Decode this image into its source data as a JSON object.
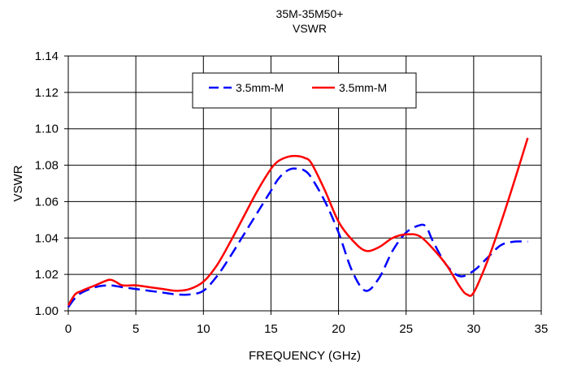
{
  "chart_data": {
    "type": "line",
    "title": "35M-35M50+",
    "subtitle": "VSWR",
    "xlabel": "FREQUENCY (GHz)",
    "ylabel": "VSWR",
    "xlim": [
      0,
      35
    ],
    "ylim": [
      1.0,
      1.14
    ],
    "xticks": [
      "0",
      "5",
      "10",
      "15",
      "20",
      "25",
      "30",
      "35"
    ],
    "yticks": [
      "1.00",
      "1.02",
      "1.04",
      "1.06",
      "1.08",
      "1.10",
      "1.12",
      "1.14"
    ],
    "grid": true,
    "legend_position": "top-center",
    "series": [
      {
        "name": "3.5mm-M",
        "color": "#0000ff",
        "dash": "dashed",
        "x": [
          0,
          0.5,
          1,
          2,
          3,
          4,
          5,
          6,
          7,
          8,
          9,
          10,
          11,
          12,
          13,
          14,
          15,
          15.5,
          16,
          16.5,
          17,
          17.5,
          18,
          19,
          20,
          21,
          22,
          23,
          24,
          25,
          26,
          26.5,
          27,
          28,
          29,
          30,
          31,
          32,
          33,
          34
        ],
        "values": [
          1.002,
          1.007,
          1.01,
          1.013,
          1.014,
          1.013,
          1.012,
          1.011,
          1.01,
          1.009,
          1.009,
          1.011,
          1.019,
          1.03,
          1.042,
          1.054,
          1.066,
          1.072,
          1.076,
          1.078,
          1.078,
          1.077,
          1.073,
          1.06,
          1.043,
          1.022,
          1.011,
          1.018,
          1.033,
          1.043,
          1.047,
          1.046,
          1.038,
          1.025,
          1.019,
          1.022,
          1.029,
          1.036,
          1.038,
          1.038
        ]
      },
      {
        "name": "3.5mm-M",
        "color": "#ff0000",
        "dash": "solid",
        "x": [
          0,
          0.5,
          1,
          2,
          3,
          3.5,
          4,
          5,
          6,
          7,
          8,
          9,
          10,
          11,
          12,
          13,
          14,
          15,
          15.5,
          16,
          16.5,
          17,
          17.5,
          18,
          19,
          20,
          21,
          22,
          23,
          24,
          25,
          26,
          27,
          28,
          29,
          29.5,
          30,
          31,
          32,
          33,
          34
        ],
        "values": [
          1.003,
          1.009,
          1.011,
          1.014,
          1.017,
          1.016,
          1.014,
          1.014,
          1.013,
          1.012,
          1.011,
          1.012,
          1.016,
          1.025,
          1.038,
          1.052,
          1.066,
          1.078,
          1.082,
          1.084,
          1.085,
          1.085,
          1.084,
          1.081,
          1.066,
          1.049,
          1.039,
          1.033,
          1.035,
          1.04,
          1.042,
          1.041,
          1.034,
          1.025,
          1.013,
          1.009,
          1.01,
          1.027,
          1.048,
          1.071,
          1.095
        ]
      }
    ]
  }
}
